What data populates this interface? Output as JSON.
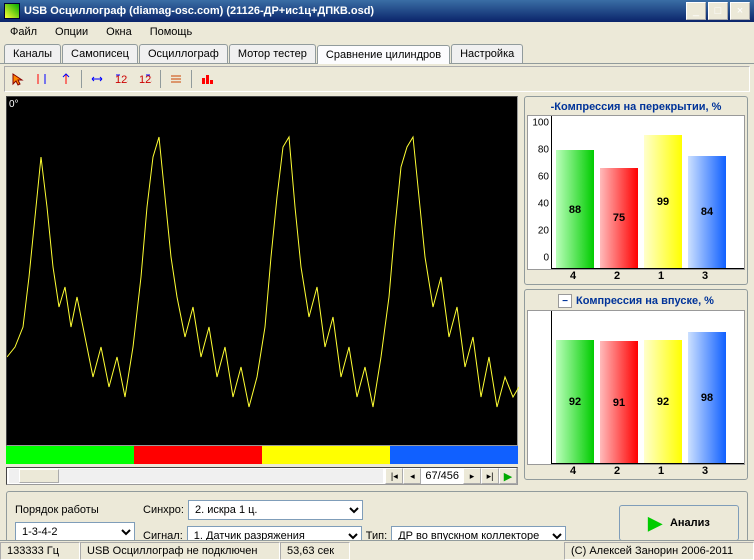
{
  "window": {
    "title": "USB Осциллограф (diamag-osc.com) (21126-ДР+ис1ц+ДПКВ.osd)"
  },
  "menu": [
    "Файл",
    "Опции",
    "Окна",
    "Помощь"
  ],
  "tabs": [
    "Каналы",
    "Самописец",
    "Осциллограф",
    "Мотор тестер",
    "Сравнение цилиндров",
    "Настройка"
  ],
  "active_tab": 4,
  "scope": {
    "type": "line",
    "background": "#000000",
    "line_color": "#ffff33",
    "line_width": 1,
    "note_text": "0°",
    "note_color": "#ffffff",
    "xlim": [
      0,
      512
    ],
    "ylim": [
      0,
      350
    ],
    "points": [
      [
        0,
        260
      ],
      [
        8,
        250
      ],
      [
        16,
        230
      ],
      [
        22,
        180
      ],
      [
        28,
        120
      ],
      [
        34,
        60
      ],
      [
        40,
        110
      ],
      [
        46,
        170
      ],
      [
        52,
        210
      ],
      [
        58,
        190
      ],
      [
        64,
        230
      ],
      [
        70,
        200
      ],
      [
        78,
        240
      ],
      [
        86,
        280
      ],
      [
        94,
        250
      ],
      [
        102,
        290
      ],
      [
        110,
        260
      ],
      [
        118,
        300
      ],
      [
        126,
        250
      ],
      [
        134,
        180
      ],
      [
        140,
        110
      ],
      [
        146,
        60
      ],
      [
        152,
        40
      ],
      [
        158,
        100
      ],
      [
        164,
        160
      ],
      [
        170,
        200
      ],
      [
        178,
        240
      ],
      [
        186,
        210
      ],
      [
        194,
        260
      ],
      [
        202,
        230
      ],
      [
        210,
        280
      ],
      [
        218,
        250
      ],
      [
        226,
        300
      ],
      [
        234,
        270
      ],
      [
        242,
        310
      ],
      [
        250,
        280
      ],
      [
        258,
        230
      ],
      [
        264,
        160
      ],
      [
        270,
        100
      ],
      [
        276,
        50
      ],
      [
        282,
        40
      ],
      [
        288,
        110
      ],
      [
        294,
        170
      ],
      [
        302,
        220
      ],
      [
        310,
        190
      ],
      [
        318,
        250
      ],
      [
        326,
        220
      ],
      [
        334,
        280
      ],
      [
        342,
        250
      ],
      [
        350,
        300
      ],
      [
        358,
        270
      ],
      [
        366,
        310
      ],
      [
        374,
        260
      ],
      [
        382,
        200
      ],
      [
        388,
        130
      ],
      [
        394,
        70
      ],
      [
        400,
        50
      ],
      [
        406,
        40
      ],
      [
        412,
        100
      ],
      [
        418,
        160
      ],
      [
        426,
        210
      ],
      [
        434,
        180
      ],
      [
        442,
        240
      ],
      [
        450,
        210
      ],
      [
        458,
        270
      ],
      [
        466,
        240
      ],
      [
        474,
        300
      ],
      [
        482,
        260
      ],
      [
        490,
        310
      ],
      [
        498,
        280
      ],
      [
        506,
        300
      ],
      [
        512,
        290
      ]
    ],
    "strip_colors": [
      "#00ff00",
      "#ff0000",
      "#ffff00",
      "#1060ff"
    ],
    "counter": "67/456"
  },
  "chart1": {
    "title": "-Компрессия на перекрытии, %",
    "type": "bar",
    "ylim": [
      0,
      100
    ],
    "yticks": [
      0,
      20,
      40,
      60,
      80,
      100
    ],
    "background": "#ffffff",
    "bars": [
      {
        "label": "4",
        "value": 88,
        "text": "88",
        "color1": "#bbffbb",
        "color2": "#00cc00"
      },
      {
        "label": "2",
        "value": 75,
        "text": "75",
        "color1": "#ffbbbb",
        "color2": "#ff0000"
      },
      {
        "label": "1",
        "value": 99,
        "text": "99",
        "color1": "#ffffcc",
        "color2": "#ffff00"
      },
      {
        "label": "3",
        "value": 84,
        "text": "84",
        "color1": "#cce0ff",
        "color2": "#1060ff"
      }
    ]
  },
  "chart2": {
    "title": "Компрессия на впуске, %",
    "collapse_glyph": "−",
    "type": "bar",
    "ylim": [
      0,
      100
    ],
    "yticks": [],
    "background": "#ffffff",
    "bars": [
      {
        "label": "4",
        "value": 92,
        "text": "92",
        "color1": "#bbffbb",
        "color2": "#00cc00"
      },
      {
        "label": "2",
        "value": 91,
        "text": "91",
        "color1": "#ffbbbb",
        "color2": "#ff0000"
      },
      {
        "label": "1",
        "value": 92,
        "text": "92",
        "color1": "#ffffcc",
        "color2": "#ffff00"
      },
      {
        "label": "3",
        "value": 98,
        "text": "98",
        "color1": "#cce0ff",
        "color2": "#1060ff"
      }
    ]
  },
  "form": {
    "order_label": "Порядок работы",
    "order_value": "1-3-4-2",
    "synchro_label": "Синхро:",
    "synchro_value": "2. искра 1 ц.",
    "signal_label": "Сигнал:",
    "signal_value": "1. Датчик разряжения",
    "type_label": "Тип:",
    "type_value": "ДР во впускном коллекторе",
    "analyze_label": "Анализ"
  },
  "status": {
    "freq": "133333 Гц",
    "conn": "USB Осциллограф не подключен",
    "time": "53,63 сек",
    "copyright": "(С) Алексей Занорин 2006-2011"
  }
}
